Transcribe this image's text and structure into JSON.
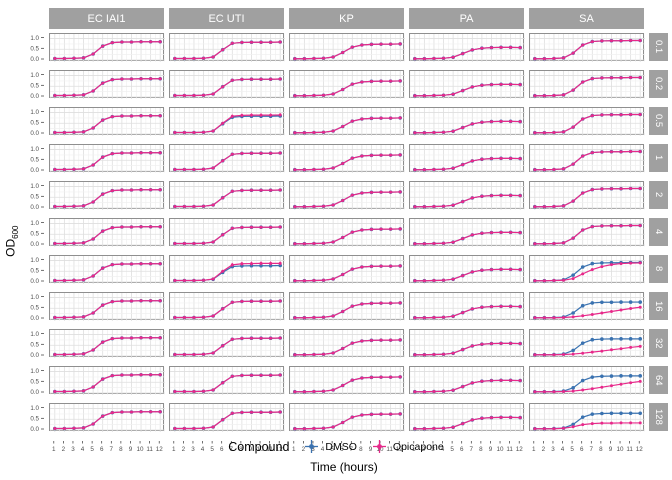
{
  "figure": {
    "ylabel_main": "OD",
    "ylabel_sub": "600",
    "xlabel": "Time (hours)",
    "legend": {
      "title": "Compound",
      "items": [
        {
          "label": "DMSO",
          "color": "#3a72b0"
        },
        {
          "label": "Opicapone",
          "color": "#e7298a"
        }
      ]
    }
  },
  "chart_data": {
    "type": "line",
    "x": [
      1,
      2,
      3,
      4,
      5,
      6,
      7,
      8,
      9,
      10,
      11,
      12
    ],
    "x_tick_labels": [
      "1",
      "2",
      "3",
      "4",
      "5",
      "6",
      "7",
      "8",
      "9",
      "10",
      "11",
      "12"
    ],
    "y_tick_labels": [
      "1.0",
      "0.5",
      "0.0"
    ],
    "y_tick_values": [
      1.0,
      0.5,
      0.0
    ],
    "ylim": [
      0,
      1.12
    ],
    "grid": true,
    "legend_position": "bottom",
    "columns": [
      "EC IAI1",
      "EC UTI",
      "KP",
      "PA",
      "SA"
    ],
    "rows": [
      "0.1",
      "0.2",
      "0.5",
      "1",
      "2",
      "4",
      "8",
      "16",
      "32",
      "64",
      "128"
    ],
    "series": [
      {
        "name": "DMSO",
        "color": "#3a72b0"
      },
      {
        "name": "Opicapone",
        "color": "#e7298a"
      }
    ],
    "default_err": 0.022,
    "base": {
      "EC IAI1": [
        0.07,
        0.07,
        0.08,
        0.1,
        0.28,
        0.65,
        0.81,
        0.84,
        0.84,
        0.85,
        0.85,
        0.85
      ],
      "EC UTI": [
        0.07,
        0.07,
        0.07,
        0.08,
        0.14,
        0.48,
        0.78,
        0.82,
        0.83,
        0.83,
        0.83,
        0.84
      ],
      "KP": [
        0.06,
        0.06,
        0.07,
        0.08,
        0.14,
        0.35,
        0.6,
        0.7,
        0.73,
        0.74,
        0.74,
        0.75
      ],
      "PA": [
        0.06,
        0.06,
        0.07,
        0.08,
        0.13,
        0.3,
        0.47,
        0.55,
        0.58,
        0.59,
        0.59,
        0.58
      ],
      "SA": [
        0.06,
        0.06,
        0.07,
        0.1,
        0.32,
        0.7,
        0.86,
        0.89,
        0.9,
        0.9,
        0.91,
        0.91
      ]
    },
    "overrides": {
      "EC UTI|0.5": {
        "opicapone": [
          0.07,
          0.07,
          0.07,
          0.08,
          0.14,
          0.5,
          0.83,
          0.87,
          0.88,
          0.88,
          0.88,
          0.89
        ],
        "opi_err": [
          0.02,
          0.02,
          0.02,
          0.02,
          0.02,
          0.03,
          0.08,
          0.08,
          0.08,
          0.08,
          0.08,
          0.08
        ]
      },
      "EC UTI|8": {
        "dmso": [
          0.07,
          0.07,
          0.07,
          0.08,
          0.13,
          0.45,
          0.72,
          0.75,
          0.76,
          0.76,
          0.76,
          0.77
        ],
        "opicapone": [
          0.07,
          0.07,
          0.07,
          0.08,
          0.14,
          0.5,
          0.8,
          0.85,
          0.86,
          0.87,
          0.87,
          0.87
        ],
        "opi_err": [
          0.02,
          0.02,
          0.02,
          0.02,
          0.02,
          0.05,
          0.09,
          0.09,
          0.09,
          0.09,
          0.09,
          0.09
        ]
      },
      "SA|8": {
        "opicapone": [
          0.06,
          0.06,
          0.07,
          0.08,
          0.16,
          0.38,
          0.58,
          0.72,
          0.81,
          0.86,
          0.88,
          0.89
        ],
        "opi_err": [
          0.02,
          0.02,
          0.02,
          0.02,
          0.03,
          0.05,
          0.06,
          0.06,
          0.05,
          0.04,
          0.04,
          0.04
        ]
      },
      "SA|16": {
        "dmso": [
          0.06,
          0.06,
          0.07,
          0.09,
          0.28,
          0.62,
          0.75,
          0.78,
          0.78,
          0.79,
          0.79,
          0.79
        ],
        "opicapone": [
          0.06,
          0.06,
          0.06,
          0.07,
          0.1,
          0.15,
          0.21,
          0.28,
          0.35,
          0.42,
          0.49,
          0.55
        ]
      },
      "SA|32": {
        "dmso": [
          0.06,
          0.06,
          0.07,
          0.09,
          0.26,
          0.6,
          0.76,
          0.79,
          0.8,
          0.8,
          0.8,
          0.8
        ],
        "opicapone": [
          0.06,
          0.06,
          0.06,
          0.07,
          0.09,
          0.13,
          0.18,
          0.23,
          0.29,
          0.34,
          0.4,
          0.45
        ]
      },
      "SA|64": {
        "dmso": [
          0.06,
          0.06,
          0.07,
          0.09,
          0.24,
          0.58,
          0.74,
          0.78,
          0.79,
          0.8,
          0.8,
          0.8
        ],
        "opicapone": [
          0.06,
          0.06,
          0.06,
          0.07,
          0.09,
          0.14,
          0.2,
          0.27,
          0.34,
          0.41,
          0.48,
          0.54
        ]
      },
      "SA|128": {
        "dmso": [
          0.06,
          0.06,
          0.07,
          0.09,
          0.26,
          0.6,
          0.74,
          0.77,
          0.78,
          0.78,
          0.78,
          0.78
        ],
        "opicapone": [
          0.06,
          0.06,
          0.06,
          0.08,
          0.15,
          0.25,
          0.3,
          0.32,
          0.32,
          0.33,
          0.33,
          0.33
        ]
      }
    }
  }
}
